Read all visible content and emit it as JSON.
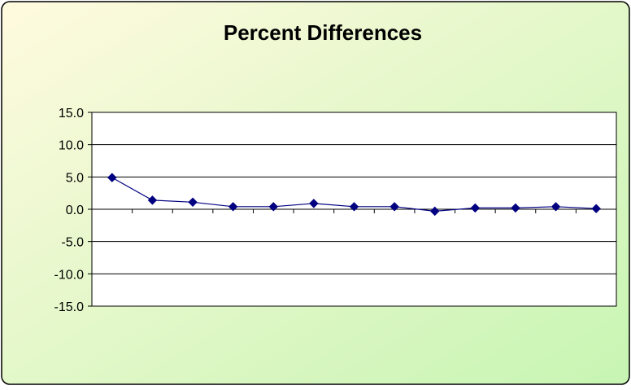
{
  "chart_data": {
    "type": "line",
    "title": "Percent Differences",
    "xlabel": "",
    "ylabel": "",
    "ylim": [
      -15,
      15
    ],
    "yticks": [
      "15.0",
      "10.0",
      "5.0",
      "0.0",
      "-5.0",
      "-10.0",
      "-15.0"
    ],
    "series": [
      {
        "values": [
          4.9,
          1.4,
          1.1,
          0.4,
          0.4,
          0.9,
          0.4,
          0.4,
          -0.3,
          0.2,
          0.2,
          0.4,
          0.1
        ]
      }
    ],
    "grid": true,
    "legend": "none",
    "colors": {
      "series": "#000080",
      "background_start": "#fffadf",
      "background_end": "#c7f5b3",
      "plot_area": "#ffffff"
    }
  }
}
